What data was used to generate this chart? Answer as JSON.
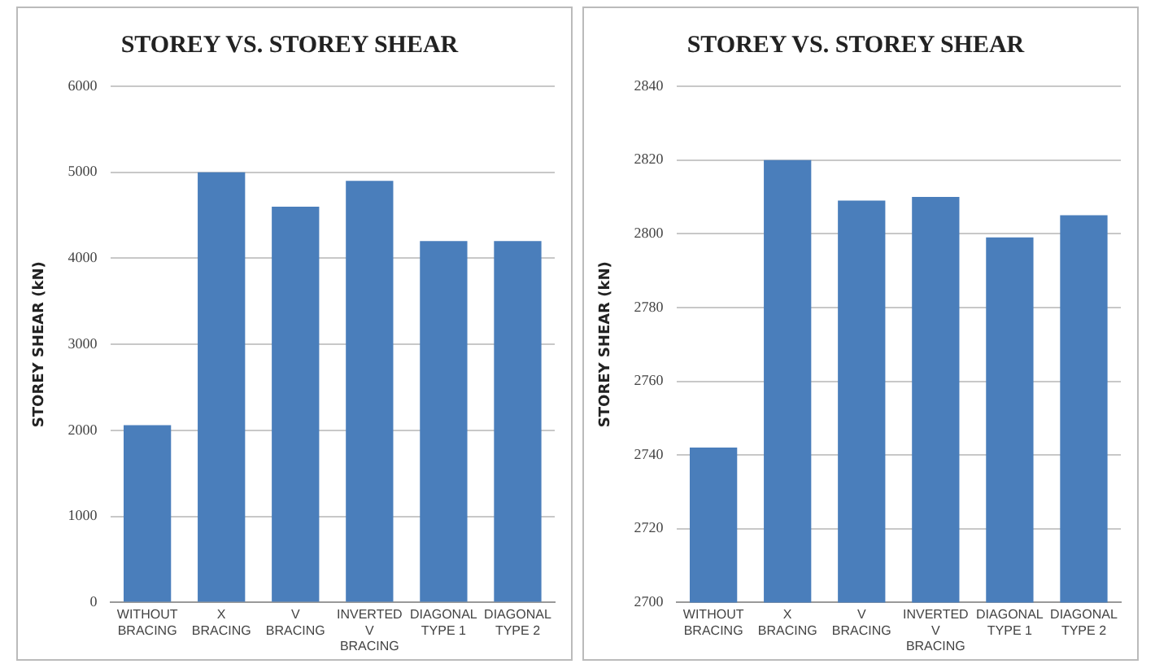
{
  "chart_data": [
    {
      "type": "bar",
      "title": "STOREY VS. STOREY SHEAR",
      "ylabel": "STOREY SHEAR (kN)",
      "categories": [
        "WITHOUT BRACING",
        "X BRACING",
        "V BRACING",
        "INVERTED V BRACING",
        "DIAGONAL TYPE 1",
        "DIAGONAL TYPE 2"
      ],
      "values": [
        2060,
        5000,
        4600,
        4900,
        4200,
        4200
      ],
      "color": "#4a7ebb",
      "ylim": [
        0,
        6000
      ],
      "yticks": [
        0,
        1000,
        2000,
        3000,
        4000,
        5000,
        6000
      ],
      "grid": "y",
      "legend": false
    },
    {
      "type": "bar",
      "title": "STOREY VS. STOREY SHEAR",
      "ylabel": "STOREY SHEAR (kN)",
      "categories": [
        "WITHOUT BRACING",
        "X BRACING",
        "V BRACING",
        "INVERTED V BRACING",
        "DIAGONAL TYPE 1",
        "DIAGONAL TYPE 2"
      ],
      "values": [
        2742,
        2820,
        2809,
        2810,
        2799,
        2805
      ],
      "color": "#4a7ebb",
      "ylim": [
        2700,
        2840
      ],
      "yticks": [
        2700,
        2720,
        2740,
        2760,
        2780,
        2800,
        2820,
        2840
      ],
      "grid": "y",
      "legend": false
    }
  ]
}
